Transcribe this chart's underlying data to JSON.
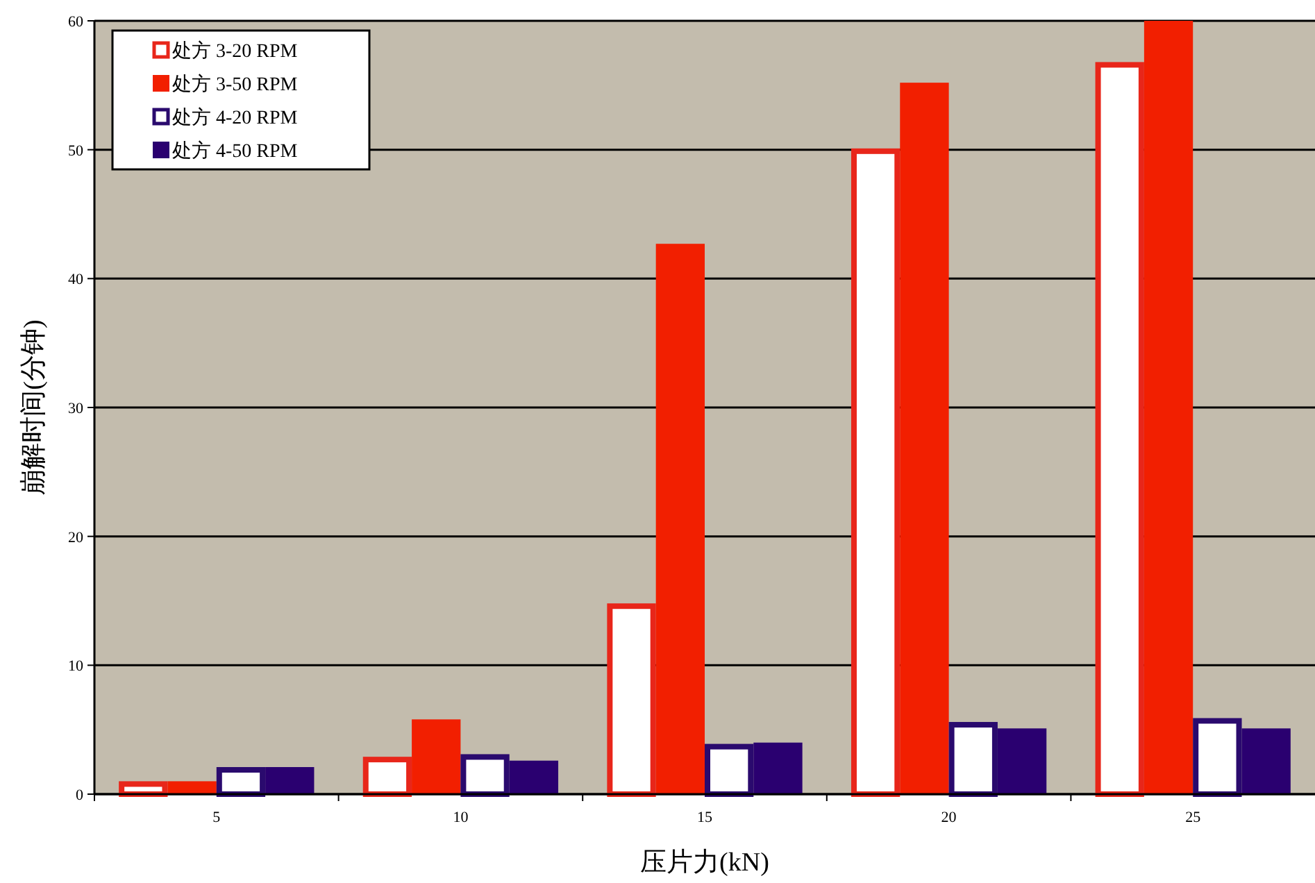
{
  "chart_data": {
    "type": "bar",
    "xlabel": "压片力(kN)",
    "ylabel": "崩解时间(分钟)",
    "categories": [
      "5",
      "10",
      "15",
      "20",
      "25"
    ],
    "series": [
      {
        "name": "处方 3-20 RPM",
        "color": "#e8261a",
        "values": [
          1.0,
          2.9,
          14.8,
          50.1,
          56.8
        ]
      },
      {
        "name": "处方 3-50 RPM",
        "color": "#f21f00",
        "values": [
          1.0,
          5.8,
          42.7,
          55.2,
          60
        ]
      },
      {
        "name": "处方 4-20 RPM",
        "color": "#2a0a6e",
        "values": [
          2.1,
          3.1,
          3.9,
          5.6,
          5.9
        ]
      },
      {
        "name": "处方 4-50 RPM",
        "color": "#2a0070",
        "values": [
          2.1,
          2.6,
          4.0,
          5.1,
          5.1
        ]
      }
    ],
    "ylim": [
      0,
      60
    ],
    "yticks": [
      0,
      10,
      20,
      30,
      40,
      50,
      60
    ],
    "grid": "y",
    "legend": "top left"
  }
}
